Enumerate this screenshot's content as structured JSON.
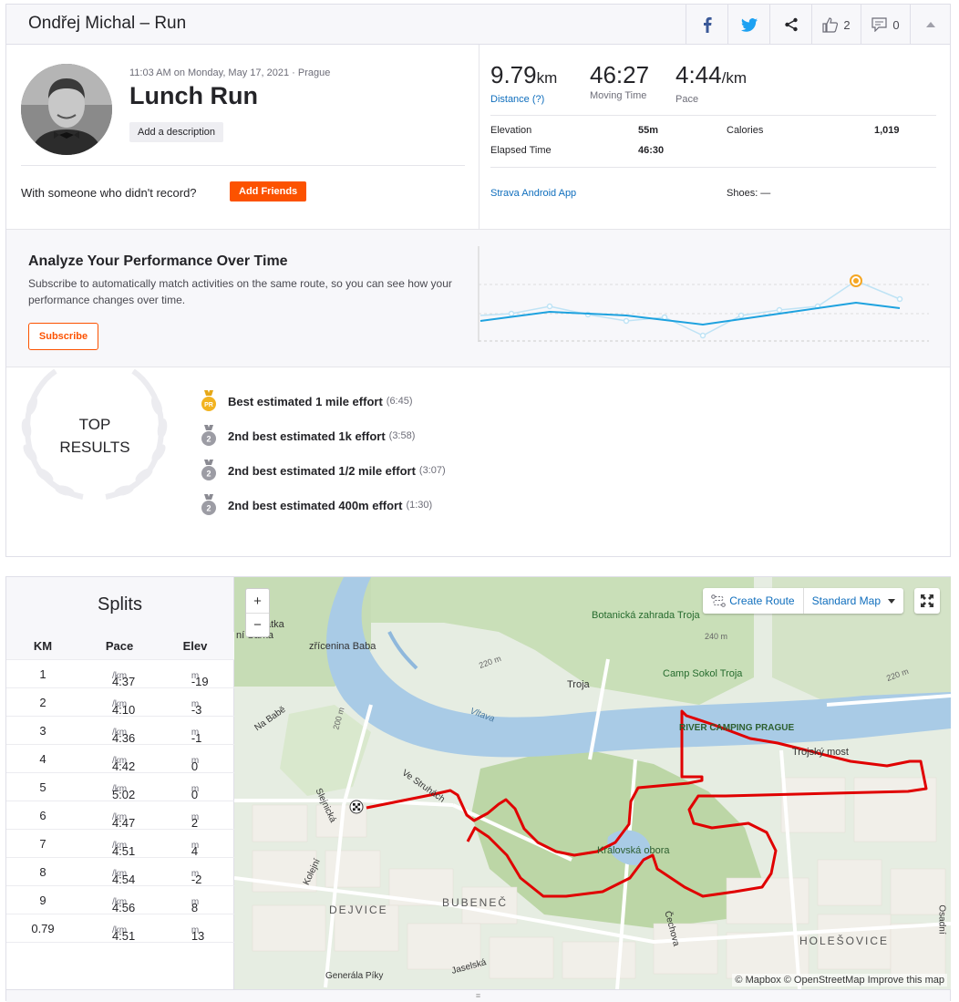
{
  "header": {
    "title": "Ondřej Michal – Run",
    "kudos_count": "2",
    "comments_count": "0"
  },
  "activity": {
    "meta": "11:03 AM on Monday, May 17, 2021 · Prague",
    "name": "Lunch Run",
    "add_description": "Add a description",
    "with_someone": "With someone who didn't record?",
    "add_friends": "Add Friends"
  },
  "stats": {
    "distance_value": "9.79",
    "distance_unit": "km",
    "distance_label": "Distance (?)",
    "moving_time_value": "46:27",
    "moving_time_label": "Moving Time",
    "pace_value": "4:44",
    "pace_unit": "/km",
    "pace_label": "Pace",
    "elevation_label": "Elevation",
    "elevation_value": "55m",
    "calories_label": "Calories",
    "calories_value": "1,019",
    "elapsed_label": "Elapsed Time",
    "elapsed_value": "46:30",
    "device": "Strava Android App",
    "shoes": "Shoes: —"
  },
  "analyze": {
    "title": "Analyze Your Performance Over Time",
    "text": "Subscribe to automatically match activities on the same route, so you can see how your performance changes over time.",
    "button": "Subscribe"
  },
  "top_results": {
    "label_line1": "TOP",
    "label_line2": "RESULTS",
    "items": [
      {
        "medal": "PR",
        "text": "Best estimated 1 mile effort",
        "time": "(6:45)"
      },
      {
        "medal": "2",
        "text": "2nd best estimated 1k effort",
        "time": "(3:58)"
      },
      {
        "medal": "2",
        "text": "2nd best estimated 1/2 mile effort",
        "time": "(3:07)"
      },
      {
        "medal": "2",
        "text": "2nd best estimated 400m effort",
        "time": "(1:30)"
      }
    ]
  },
  "splits": {
    "title": "Splits",
    "headers": [
      "KM",
      "Pace",
      "Elev"
    ],
    "pace_unit": "/km",
    "elev_unit": "m",
    "rows": [
      {
        "km": "1",
        "pace": "4:37",
        "elev": "-19"
      },
      {
        "km": "2",
        "pace": "4:10",
        "elev": "-3"
      },
      {
        "km": "3",
        "pace": "4:36",
        "elev": "-1"
      },
      {
        "km": "4",
        "pace": "4:42",
        "elev": "0"
      },
      {
        "km": "5",
        "pace": "5:02",
        "elev": "0"
      },
      {
        "km": "6",
        "pace": "4:47",
        "elev": "2"
      },
      {
        "km": "7",
        "pace": "4:51",
        "elev": "4"
      },
      {
        "km": "8",
        "pace": "4:54",
        "elev": "-2"
      },
      {
        "km": "9",
        "pace": "4:56",
        "elev": "8"
      },
      {
        "km": "0.79",
        "pace": "4:51",
        "elev": "13"
      }
    ]
  },
  "map": {
    "zoom_in": "+",
    "zoom_out": "−",
    "create_route": "Create Route",
    "map_type": "Standard Map",
    "attribution": "© Mapbox © OpenStreetMap Improve this map",
    "route_color": "#e00000",
    "labels": {
      "botanicka": "Botanická zahrada Troja",
      "camp": "Camp Sokol Troja",
      "troja": "Troja",
      "river_camping": "RIVER CAMPING PRAGUE",
      "trojsky_most": "Trojský most",
      "zricenina": "zřícenina Baba",
      "vltava": "Vltava",
      "na_babe": "Na Babě",
      "ve_struhach": "Ve Struhách",
      "slejnicka": "Slejnická",
      "kralovska": "Královská obora",
      "dejvice": "DEJVICE",
      "bubenec": "BUBENEČ",
      "holesovice": "HOLEŠOVICE",
      "cechova": "Čechova",
      "jaselska": "Jaselská",
      "generala": "Generála Píky",
      "kolejni": "Kolejní",
      "osadni": "Osadní",
      "alt_240": "240 m",
      "alt_220a": "220 m",
      "alt_220b": "220 m",
      "alt_200": "200 m",
      "partial_1": "ní Šárka",
      "partial_2": "atka"
    }
  },
  "colors": {
    "brand": "#fc5200",
    "link": "#0f6ebd",
    "chart_line": "#1ea2df"
  }
}
